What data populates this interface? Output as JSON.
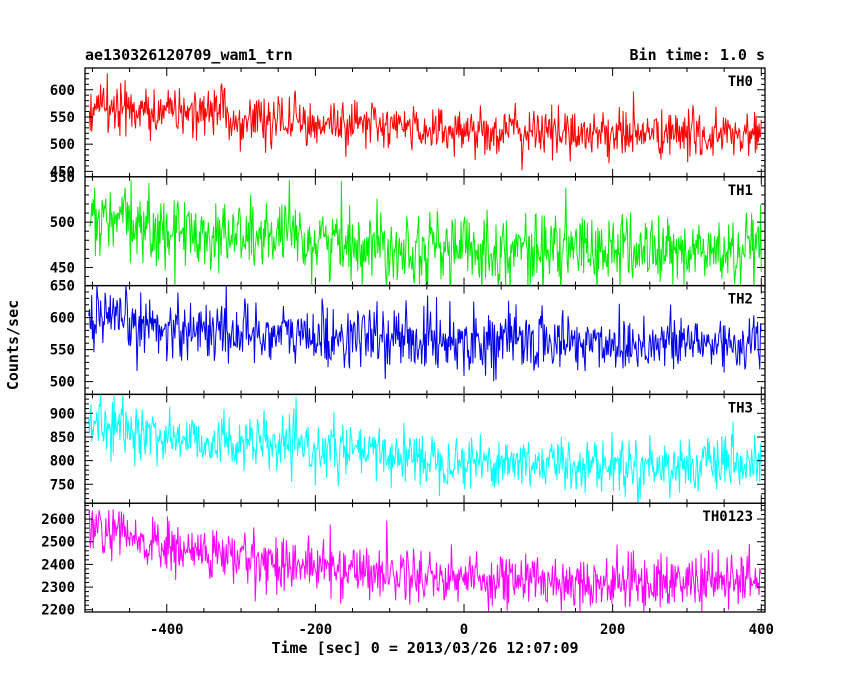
{
  "chart_data": {
    "type": "line",
    "title": "ae130326120709_wam1_trn",
    "subtitle": "Bin time: 1.0 s",
    "xlabel": "Time [sec] 0 = 2013/03/26 12:07:09",
    "ylabel": "Counts/sec",
    "xlim": [
      -510,
      405
    ],
    "x_ticks": [
      -400,
      -200,
      0,
      200,
      400
    ],
    "x_range_data": [
      -505,
      400
    ],
    "bin_time_s": 1.0,
    "grid": false,
    "panels": [
      {
        "name": "TH0",
        "color": "#ff0000",
        "ylim": [
          440,
          640
        ],
        "yticks": [
          450,
          500,
          550,
          600
        ],
        "trend": [
          [
            -505,
            572
          ],
          [
            -400,
            560
          ],
          [
            -200,
            540
          ],
          [
            0,
            525
          ],
          [
            200,
            520
          ],
          [
            400,
            515
          ]
        ],
        "noise_sigma": 22
      },
      {
        "name": "TH1",
        "color": "#00ee00",
        "ylim": [
          430,
          550
        ],
        "yticks": [
          450,
          500,
          550
        ],
        "trend": [
          [
            -505,
            505
          ],
          [
            -400,
            490
          ],
          [
            -200,
            480
          ],
          [
            0,
            470
          ],
          [
            200,
            470
          ],
          [
            400,
            465
          ]
        ],
        "noise_sigma": 20
      },
      {
        "name": "TH2",
        "color": "#0000ee",
        "ylim": [
          480,
          650
        ],
        "yticks": [
          500,
          550,
          600,
          650
        ],
        "trend": [
          [
            -505,
            595
          ],
          [
            -400,
            585
          ],
          [
            -200,
            570
          ],
          [
            0,
            565
          ],
          [
            200,
            560
          ],
          [
            400,
            560
          ]
        ],
        "noise_sigma": 24
      },
      {
        "name": "TH3",
        "color": "#00ffff",
        "ylim": [
          710,
          940
        ],
        "yticks": [
          750,
          800,
          850,
          900
        ],
        "trend": [
          [
            -505,
            880
          ],
          [
            -400,
            850
          ],
          [
            -200,
            825
          ],
          [
            0,
            800
          ],
          [
            200,
            790
          ],
          [
            400,
            790
          ]
        ],
        "noise_sigma": 28
      },
      {
        "name": "TH0123",
        "color": "#ff00ff",
        "ylim": [
          2190,
          2670
        ],
        "yticks": [
          2200,
          2300,
          2400,
          2500,
          2600
        ],
        "trend": [
          [
            -505,
            2560
          ],
          [
            -400,
            2470
          ],
          [
            -200,
            2390
          ],
          [
            0,
            2340
          ],
          [
            200,
            2320
          ],
          [
            400,
            2330
          ]
        ],
        "noise_sigma": 60
      }
    ]
  }
}
